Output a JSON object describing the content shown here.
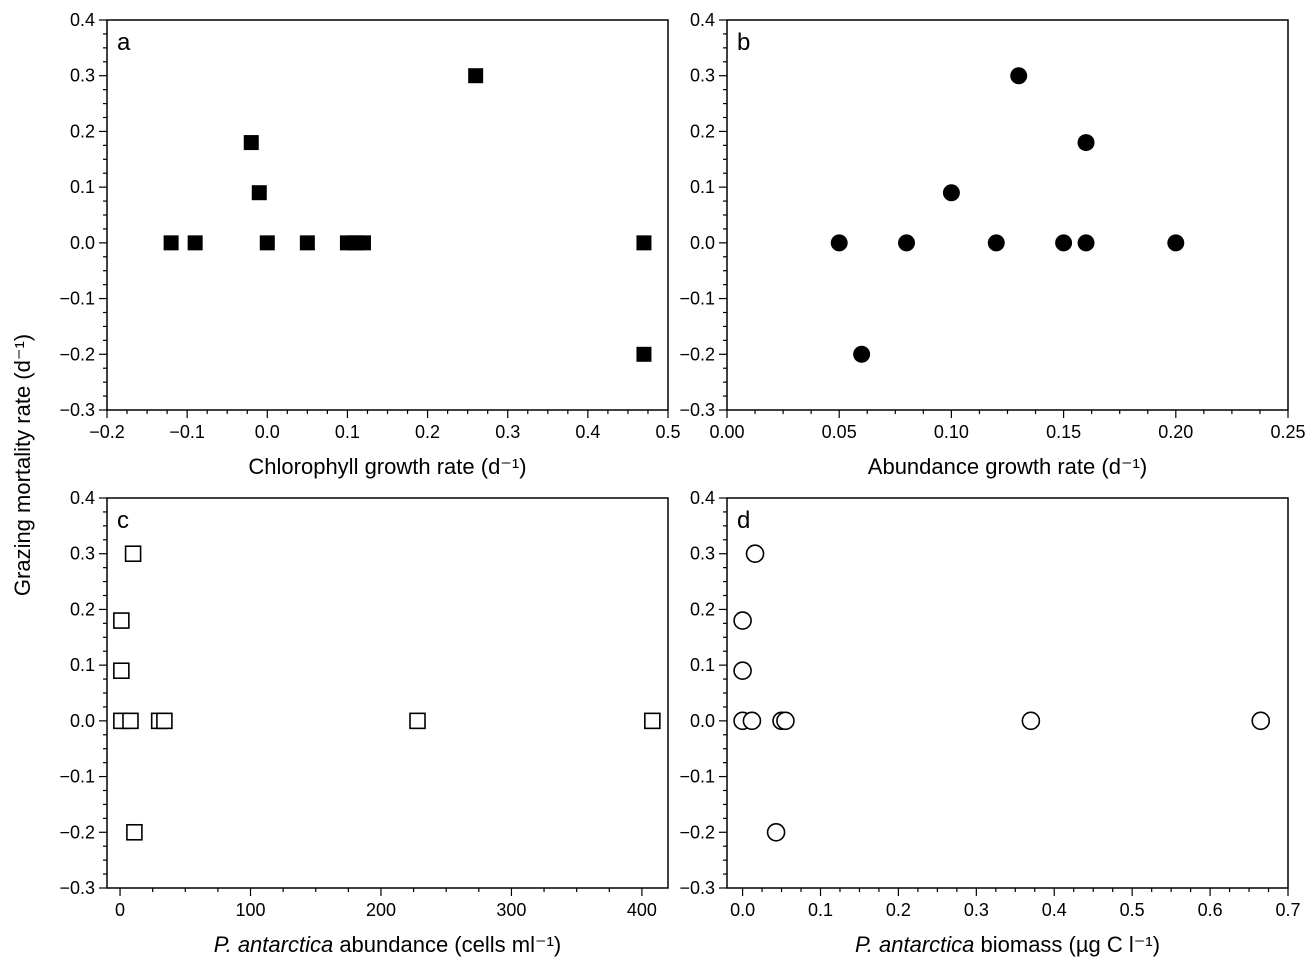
{
  "shared_ylabel": "Grazing mortality rate (d⁻¹)",
  "chart_data": [
    {
      "type": "scatter",
      "panel_label": "a",
      "xlabel": "Chlorophyll growth rate (d⁻¹)",
      "ylabel": "Grazing mortality rate (d⁻¹)",
      "xlim": [
        -0.2,
        0.5
      ],
      "ylim": [
        -0.3,
        0.4
      ],
      "xticks": [
        -0.2,
        -0.1,
        0.0,
        0.1,
        0.2,
        0.3,
        0.4,
        0.5
      ],
      "xtick_labels": [
        "−0.2",
        "−0.1",
        "0.0",
        "0.1",
        "0.2",
        "0.3",
        "0.4",
        "0.5"
      ],
      "yticks": [
        -0.3,
        -0.2,
        -0.1,
        0.0,
        0.1,
        0.2,
        0.3,
        0.4
      ],
      "ytick_labels": [
        "−0.3",
        "−0.2",
        "−0.1",
        "0.0",
        "0.1",
        "0.2",
        "0.3",
        "0.4"
      ],
      "marker": "filled-square",
      "grid": false,
      "points": [
        {
          "x": 0.26,
          "y": 0.3
        },
        {
          "x": -0.02,
          "y": 0.18
        },
        {
          "x": -0.01,
          "y": 0.09
        },
        {
          "x": -0.12,
          "y": 0.0
        },
        {
          "x": -0.09,
          "y": 0.0
        },
        {
          "x": 0.0,
          "y": 0.0
        },
        {
          "x": 0.05,
          "y": 0.0
        },
        {
          "x": 0.1,
          "y": 0.0
        },
        {
          "x": 0.11,
          "y": 0.0
        },
        {
          "x": 0.12,
          "y": 0.0
        },
        {
          "x": 0.47,
          "y": 0.0
        },
        {
          "x": 0.47,
          "y": -0.2
        }
      ]
    },
    {
      "type": "scatter",
      "panel_label": "b",
      "xlabel": "Abundance growth rate (d⁻¹)",
      "xlim": [
        0.0,
        0.25
      ],
      "ylim": [
        -0.3,
        0.4
      ],
      "xticks": [
        0.0,
        0.05,
        0.1,
        0.15,
        0.2,
        0.25
      ],
      "xtick_labels": [
        "0.00",
        "0.05",
        "0.10",
        "0.15",
        "0.20",
        "0.25"
      ],
      "yticks": [
        -0.3,
        -0.2,
        -0.1,
        0.0,
        0.1,
        0.2,
        0.3,
        0.4
      ],
      "ytick_labels": [
        "−0.3",
        "−0.2",
        "−0.1",
        "0.0",
        "0.1",
        "0.2",
        "0.3",
        "0.4"
      ],
      "marker": "filled-circle",
      "grid": false,
      "points": [
        {
          "x": 0.13,
          "y": 0.3
        },
        {
          "x": 0.16,
          "y": 0.18
        },
        {
          "x": 0.1,
          "y": 0.09
        },
        {
          "x": 0.05,
          "y": 0.0
        },
        {
          "x": 0.08,
          "y": 0.0
        },
        {
          "x": 0.12,
          "y": 0.0
        },
        {
          "x": 0.15,
          "y": 0.0
        },
        {
          "x": 0.16,
          "y": 0.0
        },
        {
          "x": 0.2,
          "y": 0.0
        },
        {
          "x": 0.06,
          "y": -0.2
        }
      ]
    },
    {
      "type": "scatter",
      "panel_label": "c",
      "xlabel_italic": "P. antarctica",
      "xlabel": " abundance (cells ml⁻¹)",
      "xlim": [
        -10,
        420
      ],
      "ylim": [
        -0.3,
        0.4
      ],
      "xticks": [
        0,
        100,
        200,
        300,
        400
      ],
      "xtick_labels": [
        "0",
        "100",
        "200",
        "300",
        "400"
      ],
      "yticks": [
        -0.3,
        -0.2,
        -0.1,
        0.0,
        0.1,
        0.2,
        0.3,
        0.4
      ],
      "ytick_labels": [
        "−0.3",
        "−0.2",
        "−0.1",
        "0.0",
        "0.1",
        "0.2",
        "0.3",
        "0.4"
      ],
      "marker": "open-square",
      "grid": false,
      "points": [
        {
          "x": 10,
          "y": 0.3
        },
        {
          "x": 1,
          "y": 0.18
        },
        {
          "x": 1,
          "y": 0.09
        },
        {
          "x": 1,
          "y": 0.0
        },
        {
          "x": 8,
          "y": 0.0
        },
        {
          "x": 30,
          "y": 0.0
        },
        {
          "x": 34,
          "y": 0.0
        },
        {
          "x": 228,
          "y": 0.0
        },
        {
          "x": 408,
          "y": 0.0
        },
        {
          "x": 11,
          "y": -0.2
        }
      ]
    },
    {
      "type": "scatter",
      "panel_label": "d",
      "xlabel_italic": "P. antarctica",
      "xlabel": " biomass (µg C l⁻¹)",
      "xlim": [
        -0.02,
        0.7
      ],
      "ylim": [
        -0.3,
        0.4
      ],
      "xticks": [
        0.0,
        0.1,
        0.2,
        0.3,
        0.4,
        0.5,
        0.6,
        0.7
      ],
      "xtick_labels": [
        "0.0",
        "0.1",
        "0.2",
        "0.3",
        "0.4",
        "0.5",
        "0.6",
        "0.7"
      ],
      "yticks": [
        -0.3,
        -0.2,
        -0.1,
        0.0,
        0.1,
        0.2,
        0.3,
        0.4
      ],
      "ytick_labels": [
        "−0.3",
        "−0.2",
        "−0.1",
        "0.0",
        "0.1",
        "0.2",
        "0.3",
        "0.4"
      ],
      "marker": "open-circle",
      "grid": false,
      "points": [
        {
          "x": 0.016,
          "y": 0.3
        },
        {
          "x": 0.0,
          "y": 0.18
        },
        {
          "x": 0.0,
          "y": 0.09
        },
        {
          "x": 0.0,
          "y": 0.0
        },
        {
          "x": 0.012,
          "y": 0.0
        },
        {
          "x": 0.05,
          "y": 0.0
        },
        {
          "x": 0.055,
          "y": 0.0
        },
        {
          "x": 0.37,
          "y": 0.0
        },
        {
          "x": 0.665,
          "y": 0.0
        },
        {
          "x": 0.043,
          "y": -0.2
        }
      ]
    }
  ]
}
